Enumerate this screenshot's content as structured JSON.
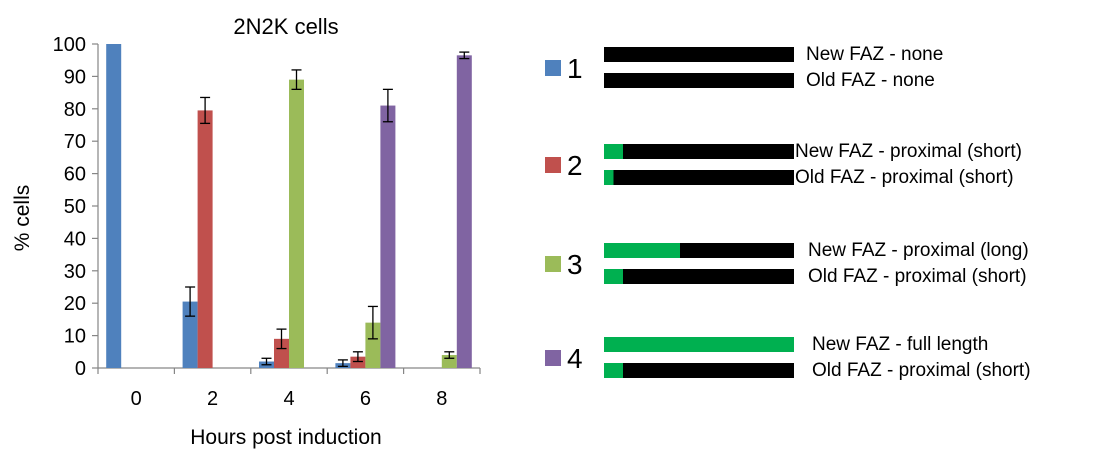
{
  "chart_data": {
    "type": "bar",
    "title": "2N2K cells",
    "xlabel": "Hours post induction",
    "ylabel": "% cells",
    "ylim": [
      0,
      100
    ],
    "yticks": [
      0,
      10,
      20,
      30,
      40,
      50,
      60,
      70,
      80,
      90,
      100
    ],
    "categories": [
      "0",
      "2",
      "4",
      "6",
      "8"
    ],
    "grid": false,
    "legend_position": "right",
    "series": [
      {
        "name": "1",
        "color": "#4F81BD",
        "values": [
          100,
          20.5,
          2,
          1.5,
          0
        ],
        "errors": [
          0,
          4.5,
          1,
          1,
          0
        ]
      },
      {
        "name": "2",
        "color": "#C0504D",
        "values": [
          0,
          79.5,
          9,
          3.5,
          0
        ],
        "errors": [
          0,
          4,
          3,
          1.5,
          0
        ]
      },
      {
        "name": "3",
        "color": "#9BBB59",
        "values": [
          0,
          0,
          89,
          14,
          4
        ],
        "errors": [
          0,
          0,
          3,
          5,
          1
        ]
      },
      {
        "name": "4",
        "color": "#8064A2",
        "values": [
          0,
          0,
          0,
          81,
          96.5
        ],
        "errors": [
          0,
          0,
          0,
          5,
          1
        ]
      }
    ]
  },
  "legend": [
    {
      "number": "1",
      "color": "#4F81BD",
      "new_label": "New FAZ - none",
      "new_green_fraction": 0,
      "old_label": "Old FAZ - none",
      "old_green_fraction": 0
    },
    {
      "number": "2",
      "color": "#C0504D",
      "new_label": "New FAZ - proximal (short)",
      "new_green_fraction": 0.1,
      "old_label": "Old FAZ - proximal (short)",
      "old_green_fraction": 0.05
    },
    {
      "number": "3",
      "color": "#9BBB59",
      "new_label": "New FAZ - proximal (long)",
      "new_green_fraction": 0.4,
      "old_label": "Old FAZ - proximal (short)",
      "old_green_fraction": 0.1
    },
    {
      "number": "4",
      "color": "#8064A2",
      "new_label": "New FAZ - full length",
      "new_green_fraction": 1,
      "old_label": "Old FAZ - proximal (short)",
      "old_green_fraction": 0.1
    }
  ],
  "colors": {
    "faz_green": "#00B050",
    "faz_black": "#000000",
    "axis": "#868686"
  }
}
